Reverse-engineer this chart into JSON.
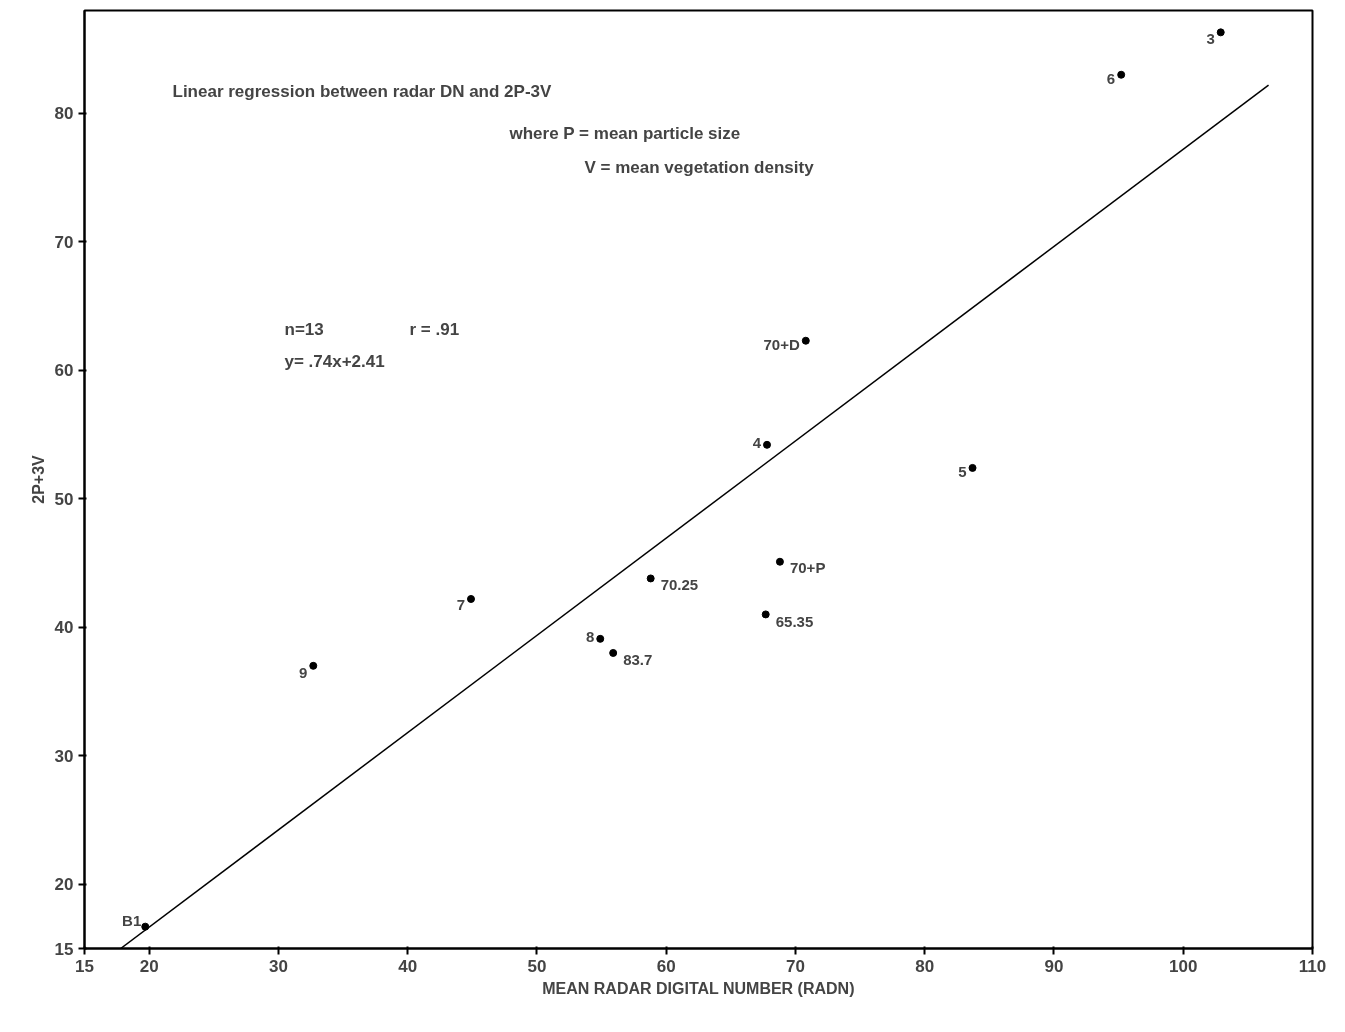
{
  "chart_data": {
    "type": "scatter",
    "xlabel": "MEAN RADAR DIGITAL NUMBER (RADN)",
    "ylabel": "2P+3V",
    "xlim": [
      15,
      110
    ],
    "ylim": [
      15,
      88
    ],
    "xticks": [
      15,
      20,
      30,
      40,
      50,
      60,
      70,
      80,
      90,
      100,
      110
    ],
    "yticks": [
      15,
      20,
      30,
      40,
      50,
      60,
      70,
      80
    ],
    "grid": false,
    "series": [
      {
        "color": "#000000",
        "marker": "circle",
        "x": [
          19.7,
          32.7,
          44.9,
          54.9,
          55.9,
          58.8,
          67.8,
          67.7,
          68.8,
          70.8,
          83.7,
          95.2,
          102.9
        ],
        "values": [
          16.7,
          37.0,
          42.2,
          39.1,
          38.0,
          43.8,
          54.2,
          41.0,
          45.1,
          62.3,
          52.4,
          83.0,
          86.3
        ]
      },
      {
        "type": "line",
        "color": "#000000",
        "marker": "none",
        "x": [
          17.8,
          106.6
        ],
        "values": [
          15,
          82.2
        ],
        "line_style": "solid"
      }
    ],
    "annotations": [
      "Linear regression between radar DN and 2P-3V",
      "where  P = mean particle size",
      "V = mean vegetation density",
      "n=13",
      "r = .91",
      "y= .74x+2.41",
      {
        "text": "B1",
        "x": 19.7,
        "y": 16.7
      },
      {
        "text": "9",
        "x": 32.7,
        "y": 37.0
      },
      {
        "text": "7",
        "x": 44.9,
        "y": 42.2
      },
      {
        "text": "8",
        "x": 54.9,
        "y": 39.1
      },
      {
        "text": "83.7",
        "x": 55.9,
        "y": 38.0
      },
      {
        "text": "70.25",
        "x": 58.8,
        "y": 43.8
      },
      {
        "text": "4",
        "x": 67.8,
        "y": 54.2
      },
      {
        "text": "65.35",
        "x": 67.7,
        "y": 41.0
      },
      {
        "text": "70+P",
        "x": 68.8,
        "y": 45.1
      },
      {
        "text": "70+D",
        "x": 70.8,
        "y": 62.3
      },
      {
        "text": "5",
        "x": 83.7,
        "y": 52.4
      },
      {
        "text": "6",
        "x": 95.2,
        "y": 83.0
      },
      {
        "text": "3",
        "x": 102.9,
        "y": 86.3
      }
    ]
  }
}
